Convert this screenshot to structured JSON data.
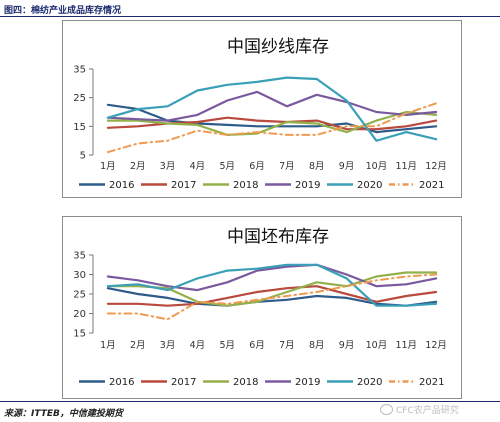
{
  "figure_label": "图四：棉纺产业成品库存情况",
  "source": "来源：ITTEB，中信建投期货",
  "watermark": "CFC农产品研究",
  "months": [
    "1月",
    "2月",
    "3月",
    "4月",
    "5月",
    "6月",
    "7月",
    "8月",
    "9月",
    "10月",
    "11月",
    "12月"
  ],
  "colors": {
    "2016": "#2e5b8a",
    "2017": "#b84a3e",
    "2018": "#93b04a",
    "2019": "#7a5a9e",
    "2020": "#3aa0b8",
    "2021": "#f09a50"
  },
  "chart_data": [
    {
      "type": "line",
      "title": "中国纱线库存",
      "ylim": [
        5,
        35
      ],
      "yticks": [
        5,
        15,
        25,
        35
      ],
      "categories": [
        "1月",
        "2月",
        "3月",
        "4月",
        "5月",
        "6月",
        "7月",
        "8月",
        "9月",
        "10月",
        "11月",
        "12月"
      ],
      "legend": "bottom",
      "series": [
        {
          "name": "2016",
          "values": [
            22.5,
            21,
            17,
            16,
            15.5,
            15,
            15,
            15,
            16,
            13,
            14,
            15
          ]
        },
        {
          "name": "2017",
          "values": [
            14.5,
            15,
            16,
            16.5,
            18,
            17,
            16.5,
            17,
            14,
            14,
            15,
            17
          ]
        },
        {
          "name": "2018",
          "values": [
            17,
            17,
            16,
            15.5,
            12,
            12.5,
            16.5,
            16,
            13,
            17,
            20,
            19
          ]
        },
        {
          "name": "2019",
          "values": [
            18,
            17.5,
            17,
            19,
            24,
            27,
            22,
            26,
            23.5,
            20,
            19,
            20
          ]
        },
        {
          "name": "2020",
          "values": [
            18,
            21,
            22,
            27.5,
            29.5,
            30.5,
            32,
            31.5,
            24,
            10,
            13,
            10.5
          ]
        },
        {
          "name": "2021",
          "values": [
            6,
            9,
            10,
            13.5,
            12,
            13,
            12,
            12,
            15,
            15,
            19.5,
            23
          ]
        }
      ]
    },
    {
      "type": "line",
      "title": "中国坯布库存",
      "ylim": [
        15,
        35
      ],
      "yticks": [
        15,
        20,
        25,
        30,
        35
      ],
      "categories": [
        "1月",
        "2月",
        "3月",
        "4月",
        "5月",
        "6月",
        "7月",
        "8月",
        "9月",
        "10月",
        "11月",
        "12月"
      ],
      "legend": "bottom",
      "series": [
        {
          "name": "2016",
          "values": [
            26.5,
            25,
            24,
            22.5,
            22,
            23,
            23.5,
            24.5,
            24,
            22.5,
            22,
            23
          ]
        },
        {
          "name": "2017",
          "values": [
            22.5,
            22.5,
            22,
            22.5,
            24,
            25.5,
            26.5,
            27,
            25,
            23,
            24.5,
            25.5
          ]
        },
        {
          "name": "2018",
          "values": [
            27,
            27,
            26.5,
            23,
            22,
            23,
            25.5,
            28,
            27,
            29.5,
            30.5,
            30.5
          ]
        },
        {
          "name": "2019",
          "values": [
            29.5,
            28.5,
            27,
            26,
            28,
            31,
            32,
            32.5,
            30,
            27,
            27.5,
            29
          ]
        },
        {
          "name": "2020",
          "values": [
            27,
            27.5,
            26,
            29,
            31,
            31.5,
            32.5,
            32.5,
            29,
            22,
            22,
            22.5
          ]
        },
        {
          "name": "2021",
          "values": [
            20,
            20,
            18.5,
            23,
            22.5,
            23.5,
            24.5,
            25.5,
            27,
            28.5,
            29.5,
            30
          ]
        }
      ]
    }
  ]
}
